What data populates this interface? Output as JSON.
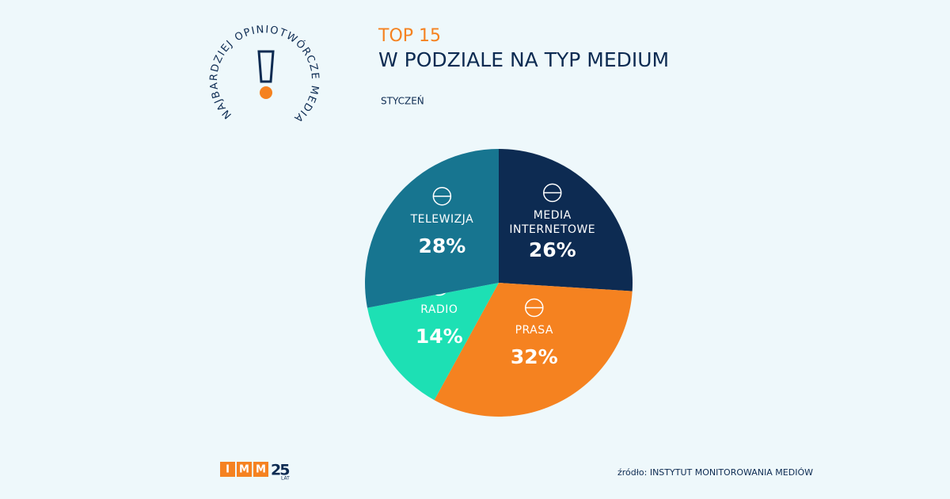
{
  "badge": {
    "text": "NAJBARDZIEJ OPINIOTWÓRCZE MEDIA"
  },
  "chart_data": {
    "type": "pie",
    "title": "TOP 15",
    "subtitle": "W PODZIALE NA TYP MEDIUM",
    "period": "STYCZEŃ",
    "categories": [
      "MEDIA INTERNETOWE",
      "PRASA",
      "RADIO",
      "TELEWIZJA"
    ],
    "values": [
      26,
      32,
      14,
      28
    ],
    "value_labels": [
      "26%",
      "32%",
      "14%",
      "28%"
    ],
    "colors": [
      "#0d2b52",
      "#f58220",
      "#1de0b4",
      "#177590"
    ]
  },
  "footer": {
    "logo": {
      "letters": [
        "I",
        "M",
        "M"
      ],
      "years": "25",
      "years_label": "LAT"
    },
    "source": "źródło: INSTYTUT MONITOROWANIA MEDIÓW"
  }
}
